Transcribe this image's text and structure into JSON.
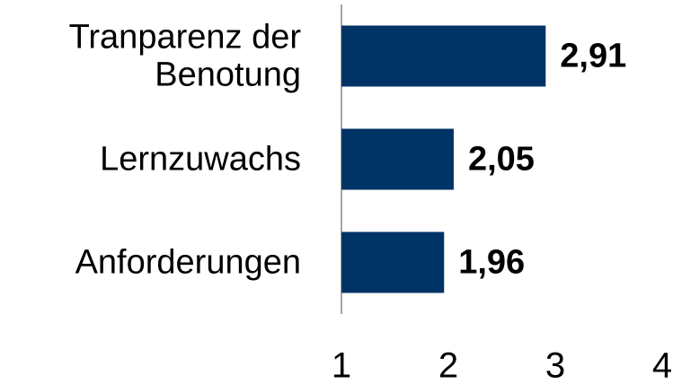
{
  "chart_data": {
    "type": "hbar",
    "categories": [
      "Tranparenz der\nBenotung",
      "Lernzuwachs",
      "Anforderungen"
    ],
    "values": [
      2.91,
      2.05,
      1.96
    ],
    "value_labels": [
      "2,91",
      "2,05",
      "1,96"
    ],
    "color": "#003366",
    "xlim": [
      1,
      4
    ],
    "xticks": [
      1,
      2,
      3,
      4
    ],
    "grid": false
  }
}
